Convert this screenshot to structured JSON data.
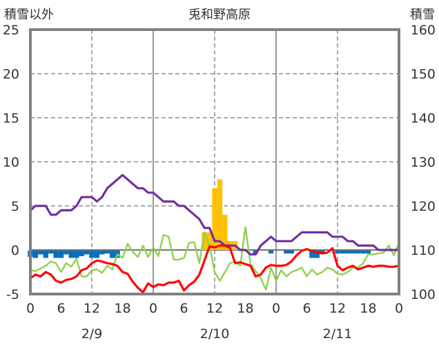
{
  "chart_data": {
    "type": "line",
    "title": "兎和野高原",
    "left_axis_label": "積雪以外",
    "right_axis_label": "積雪",
    "left_ylim": [
      -5,
      25
    ],
    "left_yticks": [
      -5,
      0,
      5,
      10,
      15,
      20,
      25
    ],
    "right_ylim": [
      100,
      160
    ],
    "right_yticks": [
      100,
      110,
      120,
      130,
      140,
      150,
      160
    ],
    "x_hours_range": [
      0,
      72
    ],
    "x_tick_labels": [
      "0",
      "6",
      "12",
      "18",
      "0",
      "6",
      "12",
      "18",
      "0",
      "6",
      "12",
      "18",
      "0"
    ],
    "date_labels": [
      {
        "label": "2/9",
        "hour": 12
      },
      {
        "label": "2/10",
        "hour": 36
      },
      {
        "label": "2/11",
        "hour": 60
      }
    ],
    "grid": true,
    "colors": {
      "snow_depth": "#7030a0",
      "temperature": "#ff0000",
      "wind": "#92d050",
      "precipitation": "#ffc000",
      "sunshine": "#0070c0",
      "grid": "#555555",
      "frame": "#808080"
    },
    "series": [
      {
        "key": "snow_depth",
        "axis": "right",
        "x": [
          0,
          1,
          2,
          3,
          4,
          5,
          6,
          7,
          8,
          9,
          10,
          11,
          12,
          13,
          14,
          15,
          16,
          17,
          18,
          19,
          20,
          21,
          22,
          23,
          24,
          25,
          26,
          27,
          28,
          29,
          30,
          31,
          32,
          33,
          34,
          35,
          36,
          37,
          38,
          39,
          40,
          41,
          42,
          43,
          44,
          45,
          46,
          47,
          48,
          49,
          50,
          51,
          52,
          53,
          54,
          55,
          56,
          57,
          58,
          59,
          60,
          61,
          62,
          63,
          64,
          65,
          66,
          67,
          68,
          69,
          70,
          71,
          72
        ],
        "values": [
          119,
          120,
          120,
          120,
          118,
          118,
          119,
          119,
          119,
          120,
          122,
          122,
          122,
          121,
          122,
          124,
          125,
          126,
          127,
          126,
          125,
          124,
          124,
          123,
          123,
          122,
          121,
          121,
          121,
          120,
          120,
          119,
          118,
          117,
          115,
          115,
          112,
          112,
          111,
          111,
          111,
          110,
          110,
          109,
          109,
          111,
          112,
          113,
          112,
          112,
          112,
          112,
          113,
          114,
          114,
          114,
          114,
          114,
          114,
          113,
          113,
          113,
          112,
          112,
          111,
          111,
          111,
          111,
          110,
          110,
          110,
          110,
          110
        ]
      },
      {
        "key": "temperature",
        "axis": "left",
        "x": [
          0,
          1,
          2,
          3,
          4,
          5,
          6,
          7,
          8,
          9,
          10,
          11,
          12,
          13,
          14,
          15,
          16,
          17,
          18,
          19,
          20,
          21,
          22,
          23,
          24,
          25,
          26,
          27,
          28,
          29,
          30,
          31,
          32,
          33,
          34,
          35,
          36,
          37,
          38,
          39,
          40,
          41,
          42,
          43,
          44,
          45,
          46,
          47,
          48,
          49,
          50,
          51,
          52,
          53,
          54,
          55,
          56,
          57,
          58,
          59,
          60,
          61,
          62,
          63,
          64,
          65,
          66,
          67,
          68,
          69,
          70,
          71,
          72
        ],
        "values": [
          -3.2,
          -2.8,
          -3.0,
          -2.5,
          -2.8,
          -3.5,
          -3.7,
          -3.4,
          -3.3,
          -3.0,
          -2.3,
          -2.1,
          -1.5,
          -1.2,
          -1.3,
          -1.5,
          -1.6,
          -1.8,
          -2.5,
          -2.7,
          -3.6,
          -4.3,
          -4.8,
          -3.8,
          -4.2,
          -3.9,
          -4.0,
          -3.7,
          -3.7,
          -3.5,
          -4.6,
          -4.0,
          -3.6,
          -2.8,
          -1.2,
          0.4,
          0.3,
          0.5,
          0.5,
          0.2,
          -1.5,
          -1.4,
          -1.6,
          -1.8,
          -3.0,
          -2.8,
          -2.0,
          -1.7,
          -1.8,
          -1.8,
          -1.7,
          -1.3,
          -0.6,
          -0.1,
          0.1,
          -0.1,
          -0.3,
          -0.4,
          -0.3,
          0.2,
          -1.8,
          -2.3,
          -2.0,
          -1.8,
          -2.2,
          -2.0,
          -1.8,
          -1.9,
          -1.8,
          -1.8,
          -1.9,
          -1.9,
          -1.8
        ]
      },
      {
        "key": "wind",
        "axis": "left",
        "x": [
          0,
          1,
          2,
          3,
          4,
          5,
          6,
          7,
          8,
          9,
          10,
          11,
          12,
          13,
          14,
          15,
          16,
          17,
          18,
          19,
          20,
          21,
          22,
          23,
          24,
          25,
          26,
          27,
          28,
          29,
          30,
          31,
          32,
          33,
          34,
          35,
          36,
          37,
          38,
          39,
          40,
          41,
          42,
          43,
          44,
          45,
          46,
          47,
          48,
          49,
          50,
          51,
          52,
          53,
          54,
          55,
          56,
          57,
          58,
          59,
          60,
          61,
          62,
          63,
          64,
          65,
          66,
          67,
          68,
          69,
          70,
          71,
          72
        ],
        "values": [
          -2.3,
          -2.4,
          -2.1,
          -1.8,
          -1.3,
          -1.5,
          -2.5,
          -1.5,
          -1.9,
          -1.0,
          -3.0,
          -3.0,
          -2.3,
          -2.2,
          -2.6,
          -1.8,
          -2.2,
          -0.5,
          -0.9,
          0.7,
          -0.2,
          -0.8,
          0.5,
          -0.8,
          0.3,
          -0.7,
          1.7,
          1.5,
          -1.1,
          -1.1,
          -0.9,
          0.8,
          0.9,
          -1.5,
          2.0,
          0.5,
          -2.5,
          -3.5,
          -2.5,
          -1.5,
          -1.3,
          -1.8,
          2.6,
          -1.6,
          -2.4,
          -3.2,
          -4.5,
          -2.0,
          -3.5,
          -2.3,
          -3.0,
          -2.5,
          -2.3,
          -2.0,
          -3.0,
          -2.2,
          -2.8,
          -2.5,
          -2.0,
          -2.2,
          -2.7,
          -2.8,
          -2.5,
          -2.0,
          -2.0,
          -1.5,
          -0.5,
          -0.5,
          -0.4,
          -0.3,
          0.5,
          -0.6,
          0.8
        ]
      }
    ],
    "precipitation": {
      "axis": "left",
      "hours": [
        34,
        35,
        36,
        37,
        38,
        39,
        40
      ],
      "values": [
        2,
        2,
        7,
        8,
        4,
        1,
        1
      ]
    },
    "sunshine": {
      "axis": "left",
      "hours": [
        0,
        1,
        2,
        3,
        4,
        5,
        6,
        7,
        8,
        9,
        10,
        11,
        12,
        13,
        14,
        15,
        16,
        17,
        44,
        47,
        50,
        51,
        55,
        56,
        57,
        60,
        61,
        62,
        63,
        64,
        65,
        66
      ],
      "values": [
        -0.8,
        -0.9,
        -0.5,
        -0.9,
        -0.4,
        -0.9,
        -0.9,
        -0.5,
        -0.9,
        -0.9,
        -0.7,
        -0.5,
        -0.9,
        -0.9,
        -0.5,
        -0.4,
        -0.9,
        -0.9,
        -0.4,
        -0.4,
        -0.4,
        -0.4,
        -0.9,
        -0.9,
        -0.4,
        -0.4,
        -0.4,
        -0.4,
        -0.4,
        -0.4,
        -0.4,
        -0.4
      ]
    }
  }
}
